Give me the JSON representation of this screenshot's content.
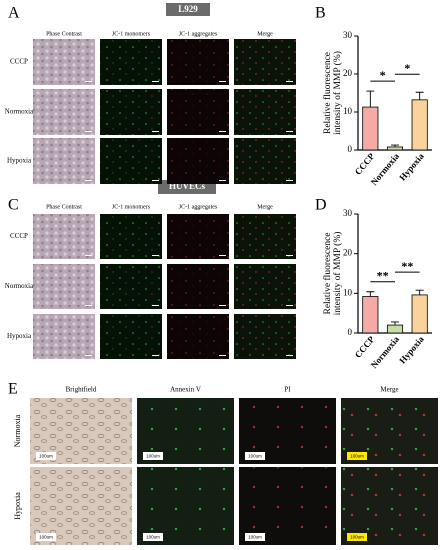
{
  "panel_a": {
    "letter": "A",
    "cell_line": "L929",
    "columns": [
      "Phase Contrast",
      "JC-1 monomers",
      "JC-1 aggregates",
      "Merge"
    ],
    "rows": [
      "CCCP",
      "Normoxia",
      "Hypoxia"
    ]
  },
  "panel_c": {
    "letter": "C",
    "cell_line": "HUVECs",
    "columns": [
      "Phase Contrast",
      "JC-1 monomers",
      "JC-1 aggregates",
      "Merge"
    ],
    "rows": [
      "CCCP",
      "Normoxia",
      "Hypoxia"
    ]
  },
  "panel_e": {
    "letter": "E",
    "columns": [
      "Brightfield",
      "Annexin V",
      "PI",
      "Merge"
    ],
    "rows": [
      "Normoxia",
      "Hypoxia"
    ],
    "scale_label": "100um"
  },
  "chart_data": [
    {
      "type": "bar",
      "panel_letter": "B",
      "y_label": [
        "Relative fluorescence",
        "intensity of MMP (%)"
      ],
      "categories": [
        "CCCP",
        "Normoxia",
        "Hypoxia"
      ],
      "values": [
        11.3,
        0.8,
        13.2
      ],
      "errors": [
        4.2,
        0.5,
        2.0
      ],
      "colors": [
        "#f5aaa5",
        "#c9dca6",
        "#f9d29c"
      ],
      "ylim": [
        0,
        30
      ],
      "yticks": [
        0,
        10,
        20,
        30
      ],
      "significance": [
        {
          "between": [
            "CCCP",
            "Normoxia"
          ],
          "label": "*"
        },
        {
          "between": [
            "Normoxia",
            "Hypoxia"
          ],
          "label": "*"
        }
      ]
    },
    {
      "type": "bar",
      "panel_letter": "D",
      "y_label": [
        "Relative fluorescence",
        "intensity of MMP (%)"
      ],
      "categories": [
        "CCCP",
        "Normoxia",
        "Hypoxia"
      ],
      "values": [
        9.2,
        2.0,
        9.6
      ],
      "errors": [
        1.2,
        0.8,
        1.2
      ],
      "colors": [
        "#f5aaa5",
        "#c9dca6",
        "#f9d29c"
      ],
      "ylim": [
        0,
        30
      ],
      "yticks": [
        0,
        10,
        20,
        30
      ],
      "significance": [
        {
          "between": [
            "CCCP",
            "Normoxia"
          ],
          "label": "**"
        },
        {
          "between": [
            "Normoxia",
            "Hypoxia"
          ],
          "label": "**"
        }
      ]
    }
  ]
}
